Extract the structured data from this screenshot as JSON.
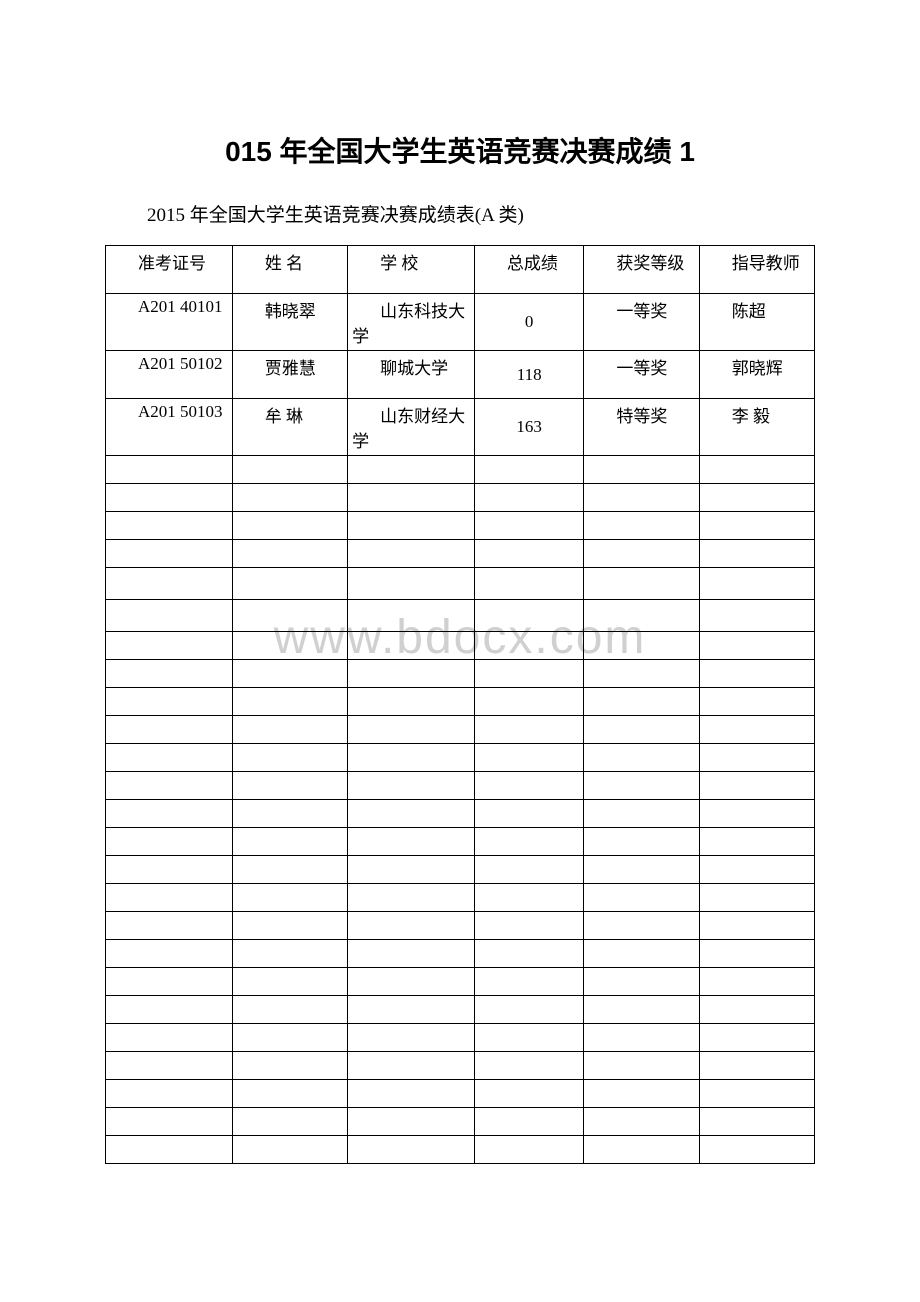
{
  "title": "015 年全国大学生英语竞赛决赛成绩 1",
  "subtitle": "2015 年全国大学生英语竞赛决赛成绩表(A 类)",
  "watermark": "www.bdocx.com",
  "table": {
    "columns": [
      "准考证号",
      "姓 名",
      "学 校",
      "总成绩",
      "获奖等级",
      "指导教师"
    ],
    "col_widths_pct": [
      15.5,
      14,
      15.5,
      13.5,
      14,
      14
    ],
    "rows": [
      [
        "A201 40101",
        "韩晓翠",
        "山东科技大学",
        "0",
        "一等奖",
        "陈超"
      ],
      [
        "A201 50102",
        "贾雅慧",
        "聊城大学",
        "118",
        "一等奖",
        "郭晓辉"
      ],
      [
        "A201 50103",
        "牟 琳",
        "山东财经大学",
        "163",
        "特等奖",
        "李 毅"
      ]
    ],
    "empty_row_count": 25,
    "border_color": "#000000",
    "background_color": "#ffffff",
    "body_fontsize": 17,
    "title_fontsize": 28,
    "subtitle_fontsize": 19
  }
}
